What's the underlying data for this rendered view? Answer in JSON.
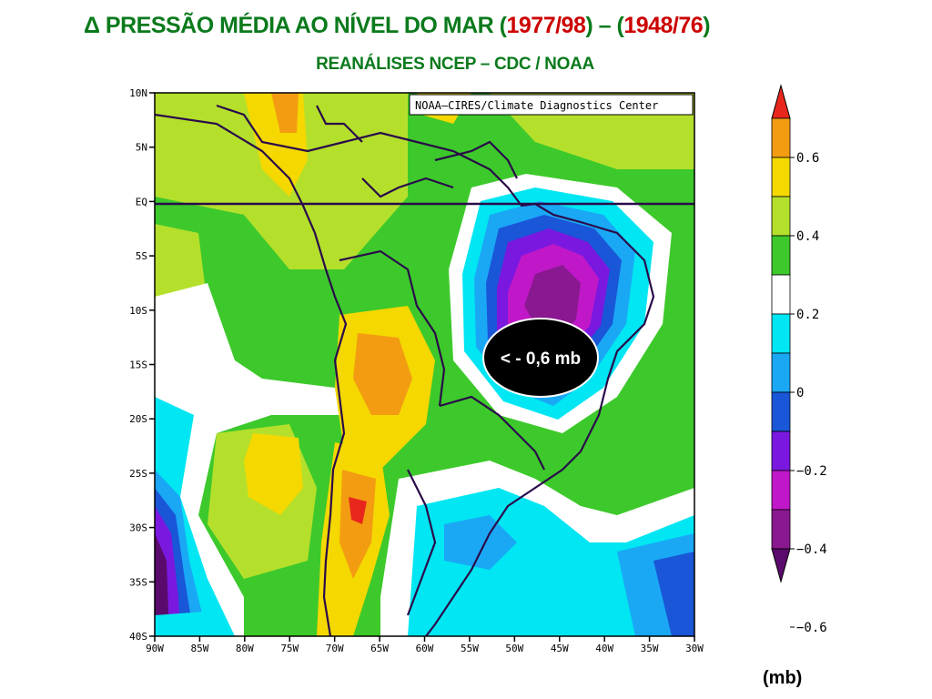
{
  "title": {
    "delta_symbol": "Δ",
    "prefix": "PRESSÃO MÉDIA AO NÍVEL DO MAR (",
    "period1": "1977/98",
    "middle": ") – (",
    "period2": "1948/76",
    "suffix": ")",
    "subtitle": "REANÁLISES NCEP – CDC / NOAA"
  },
  "map": {
    "credit": "NOAA–CIRES/Climate Diagnostics Center",
    "lat_ticks": [
      "10N",
      "5N",
      "EQ",
      "5S",
      "10S",
      "15S",
      "20S",
      "25S",
      "30S",
      "35S",
      "40S"
    ],
    "lon_ticks": [
      "90W",
      "85W",
      "80W",
      "75W",
      "70W",
      "65W",
      "60W",
      "55W",
      "50W",
      "45W",
      "40W",
      "35W",
      "30W"
    ],
    "lat_range": [
      -40,
      10
    ],
    "lon_range": [
      -90,
      -30
    ],
    "equator_line": true,
    "annotation": "< - 0,6 mb"
  },
  "colorbar": {
    "labels": [
      "0.6",
      "0.4",
      "0.2",
      "0",
      "−0.2",
      "−0.4",
      "−0.6"
    ],
    "colors": [
      "#e8261c",
      "#f39c12",
      "#f4d800",
      "#b4e02c",
      "#3dc92b",
      "#ffffff",
      "#00e6f2",
      "#1aa8f5",
      "#1a56d8",
      "#7a18e0",
      "#c018c8",
      "#8a1890",
      "#5a0a6c"
    ],
    "unit": "(mb)"
  }
}
